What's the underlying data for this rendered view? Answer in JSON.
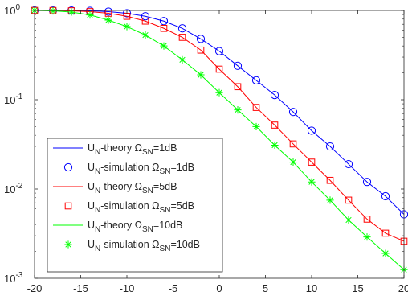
{
  "chart_data": {
    "type": "line",
    "title": "",
    "xlabel": "",
    "ylabel": "",
    "xlim": [
      -20,
      20
    ],
    "ylim": [
      0.001,
      1
    ],
    "yscale": "log",
    "grid": false,
    "legend_position": "bottom-left",
    "x_ticks": [
      "-20",
      "-15",
      "-10",
      "-5",
      "0",
      "5",
      "10",
      "15",
      "20"
    ],
    "y_ticks": [
      {
        "base": "10",
        "exp": "0"
      },
      {
        "base": "10",
        "exp": "-1"
      },
      {
        "base": "10",
        "exp": "-2"
      },
      {
        "base": "10",
        "exp": "-3"
      }
    ],
    "legend": [
      {
        "a": "U",
        "asub": "N",
        "b": "-theory Ω",
        "bsub": "SN",
        "c": "=1dB"
      },
      {
        "a": "U",
        "asub": "N",
        "b": "-simulation Ω",
        "bsub": "SN",
        "c": "=1dB"
      },
      {
        "a": "U",
        "asub": "N",
        "b": "-theory Ω",
        "bsub": "SN",
        "c": "=5dB"
      },
      {
        "a": "U",
        "asub": "N",
        "b": "-simulation Ω",
        "bsub": "SN",
        "c": "=5dB"
      },
      {
        "a": "U",
        "asub": "N",
        "b": "-theory Ω",
        "bsub": "SN",
        "c": "=10dB"
      },
      {
        "a": "U",
        "asub": "N",
        "b": "-simulation Ω",
        "bsub": "SN",
        "c": "=10dB"
      }
    ],
    "x": [
      -20,
      -18,
      -16,
      -14,
      -12,
      -10,
      -8,
      -6,
      -4,
      -2,
      0,
      2,
      4,
      6,
      8,
      10,
      12,
      14,
      16,
      18,
      20
    ],
    "series": [
      {
        "name": "UN-theory ΩSN=1dB",
        "style": "line",
        "color": "#0000ff",
        "values": [
          1.0,
          0.999,
          0.997,
          0.99,
          0.97,
          0.93,
          0.86,
          0.76,
          0.63,
          0.48,
          0.35,
          0.24,
          0.165,
          0.113,
          0.073,
          0.045,
          0.03,
          0.019,
          0.012,
          0.0083,
          0.0052
        ]
      },
      {
        "name": "UN-simulation ΩSN=1dB",
        "style": "circle",
        "color": "#0000ff",
        "values": [
          1.0,
          0.999,
          0.997,
          0.99,
          0.97,
          0.93,
          0.86,
          0.76,
          0.63,
          0.48,
          0.35,
          0.24,
          0.165,
          0.113,
          0.073,
          0.045,
          0.03,
          0.019,
          0.012,
          0.0083,
          0.0052
        ]
      },
      {
        "name": "UN-theory ΩSN=5dB",
        "style": "line",
        "color": "#ff0000",
        "values": [
          1.0,
          0.998,
          0.99,
          0.97,
          0.93,
          0.86,
          0.76,
          0.63,
          0.5,
          0.36,
          0.22,
          0.14,
          0.082,
          0.052,
          0.032,
          0.02,
          0.0125,
          0.0075,
          0.0046,
          0.0032,
          0.0026
        ]
      },
      {
        "name": "UN-simulation ΩSN=5dB",
        "style": "square",
        "color": "#ff0000",
        "values": [
          1.0,
          0.998,
          0.99,
          0.97,
          0.93,
          0.86,
          0.76,
          0.63,
          0.5,
          0.36,
          0.22,
          0.14,
          0.082,
          0.052,
          0.032,
          0.02,
          0.0125,
          0.0075,
          0.0046,
          0.0032,
          0.0026
        ]
      },
      {
        "name": "UN-theory ΩSN=10dB",
        "style": "line",
        "color": "#00ff00",
        "values": [
          1.0,
          0.99,
          0.96,
          0.89,
          0.78,
          0.66,
          0.53,
          0.4,
          0.28,
          0.19,
          0.12,
          0.077,
          0.05,
          0.031,
          0.02,
          0.012,
          0.0075,
          0.0045,
          0.0029,
          0.0019,
          0.00125
        ]
      },
      {
        "name": "UN-simulation ΩSN=10dB",
        "style": "asterisk",
        "color": "#00ff00",
        "values": [
          1.0,
          0.99,
          0.96,
          0.89,
          0.78,
          0.66,
          0.53,
          0.4,
          0.28,
          0.19,
          0.12,
          0.077,
          0.05,
          0.031,
          0.02,
          0.012,
          0.0075,
          0.0045,
          0.0029,
          0.0019,
          0.00125
        ]
      }
    ]
  }
}
